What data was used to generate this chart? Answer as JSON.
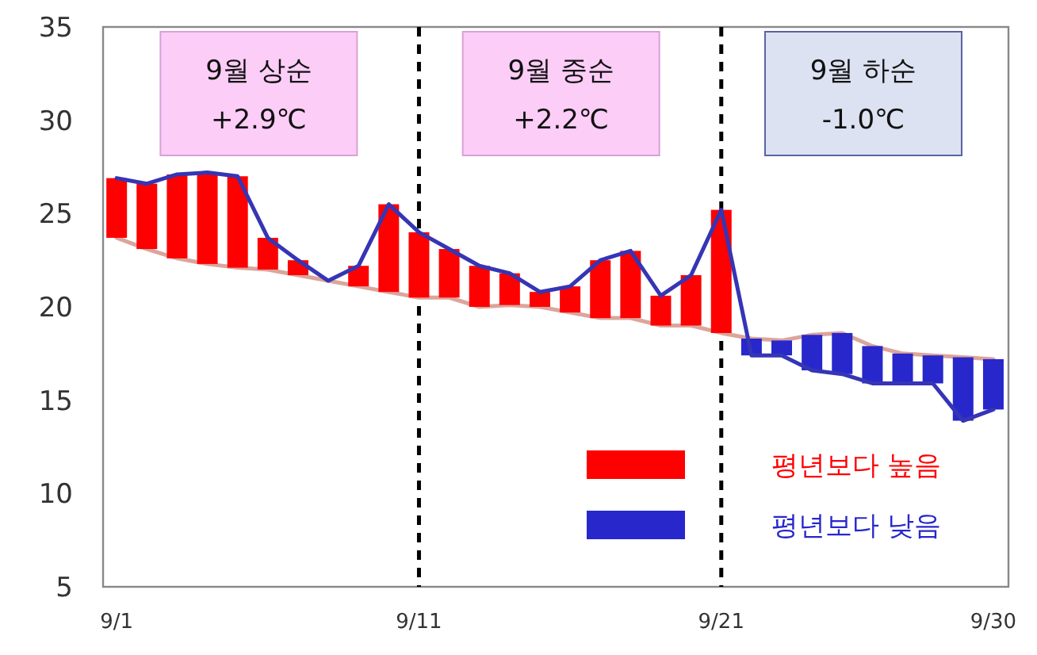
{
  "chart_data": {
    "type": "bar",
    "categories": [
      "9/1",
      null,
      null,
      null,
      null,
      null,
      null,
      null,
      null,
      null,
      "9/11",
      null,
      null,
      null,
      null,
      null,
      null,
      null,
      null,
      null,
      "9/21",
      null,
      null,
      null,
      null,
      null,
      null,
      null,
      null,
      "9/30"
    ],
    "series": [
      {
        "type": "line",
        "color": "#dba59c",
        "values": [
          23.7,
          23.1,
          22.6,
          22.3,
          22.1,
          22.0,
          21.7,
          21.4,
          21.1,
          20.8,
          20.5,
          20.5,
          20.0,
          20.1,
          20.0,
          19.7,
          19.4,
          19.4,
          19.0,
          19.0,
          18.6,
          18.3,
          18.2,
          18.5,
          18.6,
          17.9,
          17.5,
          17.4,
          17.3,
          17.2
        ]
      },
      {
        "name": "평년보다 높음",
        "color": "#ff0000",
        "base": [
          23.7,
          23.1,
          22.6,
          22.3,
          22.1,
          22.0,
          21.7,
          null,
          21.1,
          20.8,
          20.5,
          20.5,
          20.0,
          20.1,
          20.0,
          19.7,
          19.4,
          19.4,
          19.0,
          19.0,
          18.6,
          null,
          null,
          null,
          null,
          null,
          null,
          null,
          null,
          null
        ],
        "values": [
          3.2,
          3.5,
          4.5,
          4.9,
          4.9,
          1.7,
          0.8,
          null,
          1.1,
          4.7,
          3.5,
          2.6,
          2.2,
          1.7,
          0.8,
          1.4,
          3.1,
          3.6,
          1.6,
          2.7,
          6.6,
          null,
          null,
          null,
          null,
          null,
          null,
          null,
          null,
          null
        ]
      },
      {
        "name": "평년보다 낮음",
        "color": "#2727cc",
        "base": [
          null,
          null,
          null,
          null,
          null,
          null,
          null,
          null,
          null,
          null,
          null,
          null,
          null,
          null,
          null,
          null,
          null,
          null,
          null,
          null,
          null,
          18.3,
          18.2,
          18.5,
          18.6,
          17.9,
          17.5,
          17.4,
          17.3,
          17.2
        ],
        "values": [
          null,
          null,
          null,
          null,
          null,
          null,
          null,
          null,
          null,
          null,
          null,
          null,
          null,
          null,
          null,
          null,
          null,
          null,
          null,
          null,
          null,
          -0.9,
          -0.8,
          -1.9,
          -2.2,
          -2.0,
          -1.6,
          -1.5,
          -3.4,
          -2.7
        ]
      },
      {
        "type": "line",
        "color": "#3535b5",
        "values": [
          26.9,
          26.6,
          27.1,
          27.2,
          27.0,
          23.7,
          22.5,
          21.4,
          22.2,
          25.5,
          24.0,
          23.1,
          22.2,
          21.8,
          20.8,
          21.1,
          22.5,
          23.0,
          20.6,
          21.7,
          25.2,
          17.4,
          17.4,
          16.6,
          16.4,
          15.9,
          15.9,
          15.9,
          13.9,
          14.5
        ]
      }
    ],
    "ylim": [
      5,
      35
    ],
    "yticks": [
      5,
      10,
      15,
      20,
      25,
      30,
      35
    ],
    "ref_lines": [
      {
        "axis": "x",
        "value": "9/11",
        "color": "#000000",
        "line_style": "dashed"
      },
      {
        "axis": "x",
        "value": "9/21",
        "color": "#000000",
        "line_style": "dashed"
      }
    ],
    "annotations": [
      "9월 상순",
      "+2.9℃",
      "9월 중순",
      "+2.2℃",
      "9월 하순",
      "-1.0℃"
    ],
    "legend": "bottom right",
    "grid": false
  }
}
